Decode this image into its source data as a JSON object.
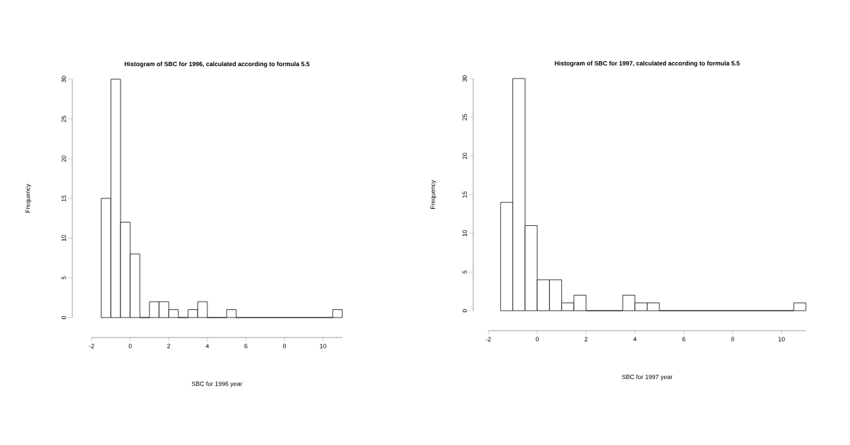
{
  "chart_data": [
    {
      "type": "histogram",
      "title": "Histogram of SBC for 1996, calculated according to formula 5.5",
      "xlabel": "SBC for 1996 year",
      "ylabel": "Frequency",
      "bins": [
        -1.5,
        -1,
        -0.5,
        0,
        0.5,
        1,
        1.5,
        2,
        2.5,
        3,
        3.5,
        4,
        4.5,
        5,
        5.5,
        6,
        6.5,
        7,
        7.5,
        8,
        8.5,
        9,
        9.5,
        10,
        10.5,
        11
      ],
      "values": [
        15,
        30,
        12,
        8,
        0,
        2,
        2,
        1,
        0,
        1,
        2,
        0,
        0,
        1,
        0,
        0,
        0,
        0,
        0,
        0,
        0,
        0,
        0,
        0,
        1
      ],
      "xlim": [
        -2,
        11
      ],
      "ylim": [
        0,
        30
      ],
      "xticks": [
        -2,
        0,
        2,
        4,
        6,
        8,
        10
      ],
      "yticks": [
        0,
        5,
        10,
        15,
        20,
        25,
        30
      ]
    },
    {
      "type": "histogram",
      "title": "Histogram of SBC for 1997, calculated according to formula 5.5",
      "xlabel": "SBC for 1997 year",
      "ylabel": "Frequency",
      "bins": [
        -1.5,
        -1,
        -0.5,
        0,
        0.5,
        1,
        1.5,
        2,
        2.5,
        3,
        3.5,
        4,
        4.5,
        5,
        5.5,
        6,
        6.5,
        7,
        7.5,
        8,
        8.5,
        9,
        9.5,
        10,
        10.5,
        11
      ],
      "values": [
        14,
        30,
        11,
        4,
        4,
        1,
        2,
        0,
        0,
        0,
        2,
        1,
        1,
        0,
        0,
        0,
        0,
        0,
        0,
        0,
        0,
        0,
        0,
        0,
        1
      ],
      "xlim": [
        -2,
        11
      ],
      "ylim": [
        0,
        30
      ],
      "xticks": [
        -2,
        0,
        2,
        4,
        6,
        8,
        10
      ],
      "yticks": [
        0,
        5,
        10,
        15,
        20,
        25,
        30
      ]
    }
  ]
}
